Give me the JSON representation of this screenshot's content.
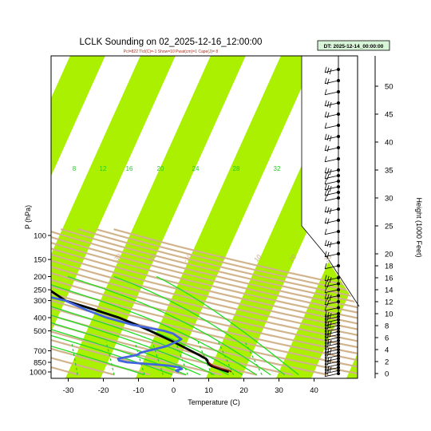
{
  "chart_data": {
    "type": "line",
    "title": "LCLK Sounding on 02_2025-12-16_12:00:00",
    "subtitle": "Pcl=822 Tlcl(C)=-1 Show=10 Pwat(cm)=1 Cape(J)= 8",
    "valid_time": "DT: 2025-12-14_00:00:00",
    "xlabel": "Temperature (C)",
    "ylabel": "P (hPa)",
    "y2label": "Height (1000 Feet)",
    "xlim": [
      -33,
      50
    ],
    "ylim": [
      1020,
      100
    ],
    "x_ticks": [
      "-30",
      "-20",
      "-10",
      "0",
      "10",
      "20",
      "30",
      "40"
    ],
    "p_ticks": [
      "100",
      "150",
      "200",
      "250",
      "300",
      "400",
      "500",
      "700",
      "850",
      "1000"
    ],
    "height_ticks": [
      "0",
      "2",
      "4",
      "6",
      "8",
      "10",
      "12",
      "14",
      "16",
      "18",
      "20",
      "25",
      "30",
      "35",
      "40",
      "45",
      "50"
    ],
    "isotherm_labels": [
      "-30",
      "-20",
      "-10",
      "0",
      "10",
      "20",
      "30",
      "40"
    ],
    "mixing_ratio_labels": [
      "8",
      "12",
      "16",
      "20",
      "24",
      "28",
      "32"
    ],
    "series": [
      {
        "name": "Temperature",
        "color": "#000000",
        "p": [
          1000,
          975,
          950,
          925,
          900,
          875,
          850,
          825,
          800,
          775,
          750,
          700,
          650,
          600,
          550,
          500,
          450,
          400,
          350,
          300,
          250,
          225,
          200,
          175,
          150,
          125,
          100
        ],
        "t": [
          15.7,
          14.2,
          12.8,
          11.2,
          9.8,
          9.0,
          8.5,
          8.2,
          7.5,
          6.2,
          5.0,
          2.2,
          -0.8,
          -4.0,
          -7.8,
          -12.0,
          -16.8,
          -22.5,
          -30.5,
          -40.0,
          -46.0,
          -46.5,
          -47.5,
          -51.5,
          -54.0,
          -59.0,
          -64.0
        ]
      },
      {
        "name": "Dewpoint",
        "color": "#4466dd",
        "p": [
          1000,
          975,
          950,
          925,
          900,
          875,
          850,
          825,
          800,
          775,
          750,
          725,
          700,
          650,
          600,
          575,
          550,
          525,
          500,
          450,
          400,
          350,
          300,
          250,
          200,
          175,
          150,
          125,
          100
        ],
        "t": [
          1.5,
          0.5,
          2.0,
          1.0,
          -2.0,
          -8.0,
          -14.5,
          -17.0,
          -17.5,
          -15.0,
          -12.5,
          -12.0,
          -10.0,
          -5.5,
          -3.0,
          -2.0,
          -3.5,
          -5.0,
          -8.0,
          -18.0,
          -26.0,
          -33.0,
          -40.0,
          -55.0,
          -67.0,
          -74.0,
          -79.0,
          -81.0,
          -82.0
        ]
      },
      {
        "name": "Surface parcel",
        "color": "#8b1a1a",
        "p": [
          1000,
          975,
          950,
          925,
          900,
          875,
          850
        ],
        "t": [
          16.5,
          15.5,
          13.5,
          12.0,
          10.5,
          9.5,
          8.8
        ]
      }
    ],
    "wind_heights_kft": [
      0,
      0.5,
      1,
      1.5,
      2,
      2.5,
      3,
      3.5,
      4,
      4.5,
      5,
      5.5,
      6,
      6.5,
      7,
      7.5,
      8,
      8.5,
      9,
      9.5,
      10,
      11,
      12,
      13,
      14,
      15,
      16,
      18,
      20,
      22,
      24,
      26,
      28,
      30,
      31,
      32,
      33,
      34,
      35,
      37,
      39,
      41,
      43,
      45,
      47,
      49,
      51,
      53
    ]
  }
}
